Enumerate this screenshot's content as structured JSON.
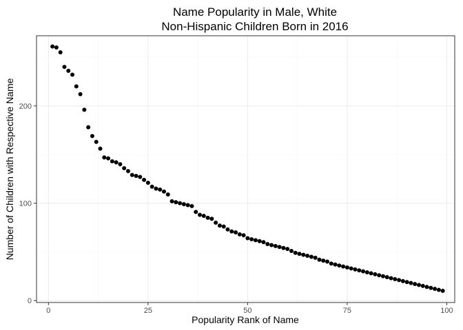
{
  "chart_data": {
    "type": "scatter",
    "title": [
      "Name Popularity in Male, White",
      "Non-Hispanic Children Born in 2016"
    ],
    "xlabel": "Popularity Rank of Name",
    "ylabel": "Number of Children with Respective Name",
    "xlim": [
      -3,
      102
    ],
    "ylim": [
      -2,
      272
    ],
    "x_ticks": [
      0,
      25,
      50,
      75,
      100
    ],
    "y_ticks": [
      0,
      100,
      200
    ],
    "grid": true,
    "legend": "none",
    "colors": {
      "point": "#000000",
      "grid_major": "#ebebeb",
      "grid_minor": "#f4f4f4",
      "panel_border": "#333333",
      "tick_text": "#4d4d4d"
    },
    "x": [
      1,
      2,
      3,
      4,
      5,
      6,
      7,
      8,
      9,
      10,
      11,
      12,
      13,
      14,
      15,
      16,
      17,
      18,
      19,
      20,
      21,
      22,
      23,
      24,
      25,
      26,
      27,
      28,
      29,
      30,
      31,
      32,
      33,
      34,
      35,
      36,
      37,
      38,
      39,
      40,
      41,
      42,
      43,
      44,
      45,
      46,
      47,
      48,
      49,
      50,
      51,
      52,
      53,
      54,
      55,
      56,
      57,
      58,
      59,
      60,
      61,
      62,
      63,
      64,
      65,
      66,
      67,
      68,
      69,
      70,
      71,
      72,
      73,
      74,
      75,
      76,
      77,
      78,
      79,
      80,
      81,
      82,
      83,
      84,
      85,
      86,
      87,
      88,
      89,
      90,
      91,
      92,
      93,
      94,
      95,
      96,
      97,
      98,
      99
    ],
    "y": [
      261,
      260,
      255,
      240,
      236,
      232,
      220,
      212,
      196,
      178,
      169,
      163,
      156,
      147,
      146,
      143,
      142,
      140,
      136,
      133,
      129,
      128,
      127,
      124,
      121,
      117,
      115,
      114,
      112,
      109,
      102,
      101,
      100,
      99,
      98,
      97,
      91,
      88,
      87,
      85,
      84,
      80,
      77,
      76,
      73,
      71,
      70,
      68,
      67,
      64,
      63,
      62,
      61,
      60,
      58,
      57,
      56,
      55,
      54,
      53,
      51,
      49,
      48,
      47,
      46,
      45,
      44,
      42,
      41,
      40,
      38,
      37,
      36,
      35,
      34,
      33,
      32,
      31,
      30,
      29,
      28,
      27,
      26,
      25,
      24,
      23,
      22,
      21,
      20,
      19,
      18,
      17,
      16,
      15,
      14,
      13,
      12,
      11,
      10
    ]
  }
}
